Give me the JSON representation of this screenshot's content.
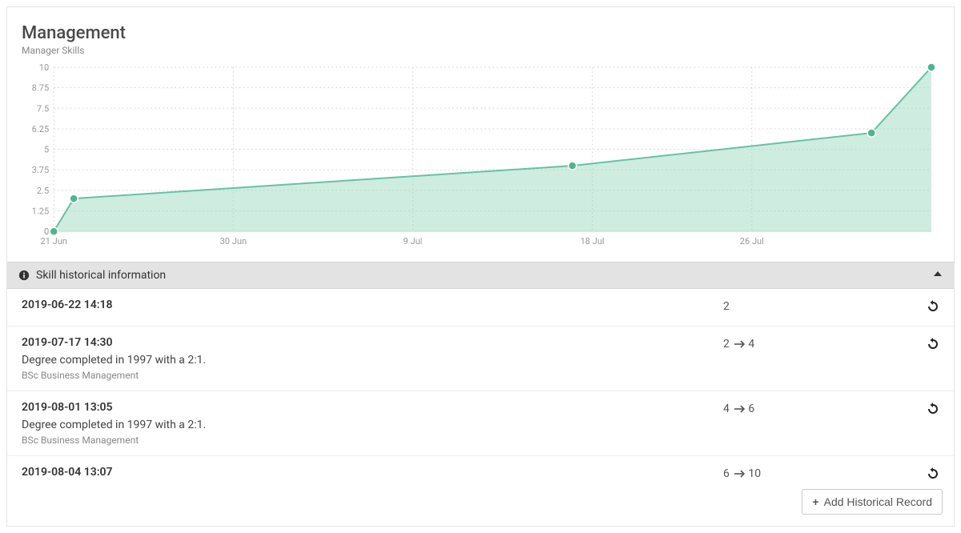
{
  "header": {
    "title": "Management",
    "subtitle": "Manager Skills"
  },
  "chart": {
    "type": "area",
    "series_color": "#66c2a5",
    "area_color": "#a8ddc9",
    "marker_color": "#4db690",
    "grid_color": "#d8d8d8",
    "background_color": "#ffffff",
    "ylim": [
      0,
      10
    ],
    "yticks": [
      0,
      1.25,
      2.5,
      3.75,
      5,
      6.25,
      7.5,
      8.75,
      10
    ],
    "xtick_labels": [
      "21 Jun",
      "30 Jun",
      "9 Jul",
      "18 Jul",
      "26 Jul"
    ],
    "xtick_positions": [
      0,
      9,
      18,
      27,
      35
    ],
    "x_range": [
      0,
      44
    ],
    "points": [
      {
        "x": 0,
        "y": 0
      },
      {
        "x": 1,
        "y": 2
      },
      {
        "x": 26,
        "y": 4
      },
      {
        "x": 41,
        "y": 6
      },
      {
        "x": 44,
        "y": 10
      }
    ],
    "label_fontsize": 11,
    "label_color": "#999999"
  },
  "historical": {
    "section_title": "Skill historical information",
    "rows": [
      {
        "timestamp": "2019-06-22 14:18",
        "from": null,
        "to": 2,
        "description": null,
        "subdescription": null
      },
      {
        "timestamp": "2019-07-17 14:30",
        "from": 2,
        "to": 4,
        "description": "Degree completed in 1997 with a 2:1.",
        "subdescription": "BSc Business Management"
      },
      {
        "timestamp": "2019-08-01 13:05",
        "from": 4,
        "to": 6,
        "description": "Degree completed in 1997 with a 2:1.",
        "subdescription": "BSc Business Management"
      },
      {
        "timestamp": "2019-08-04 13:07",
        "from": 6,
        "to": 10,
        "description": null,
        "subdescription": null
      }
    ]
  },
  "footer": {
    "add_button_label": "Add Historical Record"
  }
}
